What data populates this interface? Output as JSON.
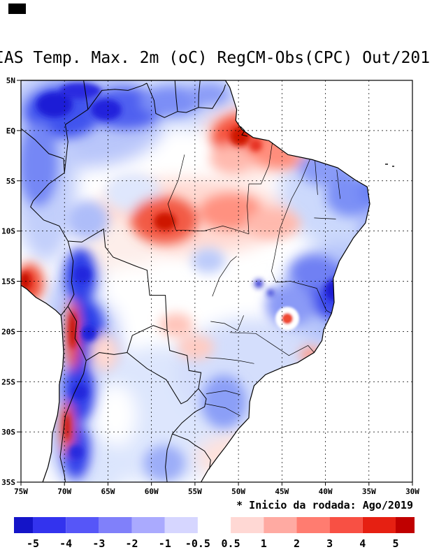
{
  "chart_data": {
    "type": "heatmap",
    "title": "IAS Temp. Max. 2m (oC) RegCM-Obs(CPC) Out/201",
    "annotation": "* Inicio da rodada: Ago/2019",
    "x_axis": {
      "range": [
        -75,
        -30
      ],
      "ticks": [
        {
          "label": "75W",
          "deg": -75
        },
        {
          "label": "70W",
          "deg": -70
        },
        {
          "label": "65W",
          "deg": -65
        },
        {
          "label": "60W",
          "deg": -60
        },
        {
          "label": "55W",
          "deg": -55
        },
        {
          "label": "50W",
          "deg": -50
        },
        {
          "label": "45W",
          "deg": -45
        },
        {
          "label": "40W",
          "deg": -40
        },
        {
          "label": "35W",
          "deg": -35
        },
        {
          "label": "30W",
          "deg": -30
        }
      ]
    },
    "y_axis": {
      "range": [
        5,
        -35
      ],
      "ticks": [
        {
          "label": "5N",
          "deg": 5
        },
        {
          "label": "EQ",
          "deg": 0
        },
        {
          "label": "5S",
          "deg": -5
        },
        {
          "label": "10S",
          "deg": -10
        },
        {
          "label": "15S",
          "deg": -15
        },
        {
          "label": "20S",
          "deg": -20
        },
        {
          "label": "25S",
          "deg": -25
        },
        {
          "label": "30S",
          "deg": -30
        },
        {
          "label": "35S",
          "deg": -35
        }
      ]
    },
    "colorbar": {
      "levels": [
        -5,
        -4,
        -3,
        -2,
        -1,
        -0.5,
        0.5,
        1,
        2,
        3,
        4,
        5
      ],
      "colors": [
        "#1414c8",
        "#3333ee",
        "#5656f8",
        "#8080fa",
        "#aaaafe",
        "#d6d6ff",
        "#ffffff",
        "#ffd8d4",
        "#ffaaa2",
        "#ff7c70",
        "#f85044",
        "#e62012",
        "#c00000"
      ]
    },
    "grid": "dashed",
    "notable_features": [
      {
        "area": "northwest corner, upper Rio Negro (~68W 2N)",
        "anomaly_c": -4.5
      },
      {
        "area": "band along top edge 75W-62W near 4N",
        "anomaly_c": -3
      },
      {
        "area": "Amazon mouth / Marajo (~51W 1S)",
        "anomaly_c": 4.5
      },
      {
        "area": "north Mato Grosso / south Para (~58W 9S)",
        "anomaly_c": 4.5
      },
      {
        "area": "central Amazon band 5S-10S",
        "anomaly_c": 2
      },
      {
        "area": "northeast interior (~37W 8S)",
        "anomaly_c": -2
      },
      {
        "area": "east Minas Gerais / south Bahia (~41W 16S)",
        "anomaly_c": -5
      },
      {
        "area": "small closed warm spot (~41.5W 18.5S)",
        "anomaly_c": 2
      },
      {
        "area": "Andes strip Chile/Bolivia 18S-33S",
        "anomaly_c": -4
      },
      {
        "area": "Atacama coastal line (~69.5W 20S-24S)",
        "anomaly_c": 5
      },
      {
        "area": "Chile coast line (~70W 29S-31S)",
        "anomaly_c": 5
      },
      {
        "area": "Peru coast at left map edge (~75W 15S)",
        "anomaly_c": 4
      },
      {
        "area": "Sao Paulo / Parana interior (~52W 23S)",
        "anomaly_c": 1
      },
      {
        "area": "Rio Grande do Sul (~54W 29S)",
        "anomaly_c": -1.5
      }
    ]
  }
}
